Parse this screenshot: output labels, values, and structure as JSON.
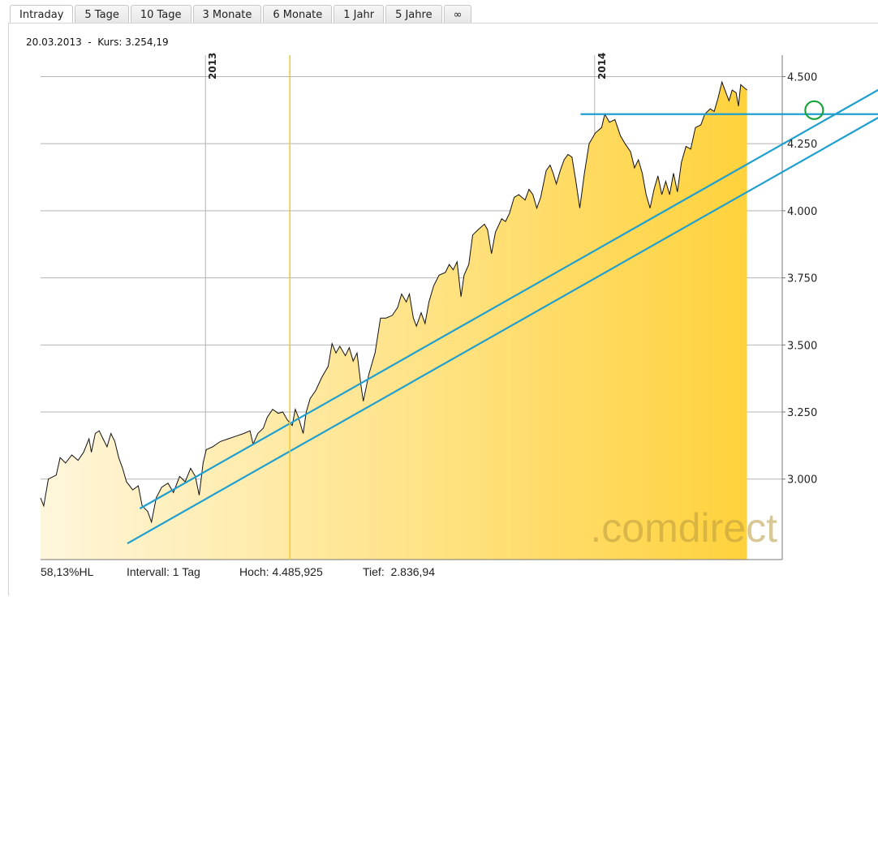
{
  "tabs": [
    {
      "label": "Intraday",
      "active": true
    },
    {
      "label": "5 Tage",
      "active": false
    },
    {
      "label": "10 Tage",
      "active": false
    },
    {
      "label": "3 Monate",
      "active": false
    },
    {
      "label": "6 Monate",
      "active": false
    },
    {
      "label": "1 Jahr",
      "active": false
    },
    {
      "label": "5 Jahre",
      "active": false
    },
    {
      "label": "∞",
      "active": false
    }
  ],
  "quote_line": "20.03.2013  -  Kurs: 3.254,19",
  "watermark": ".comdirect",
  "footer": {
    "hl": "58,13%HL",
    "interval": "Intervall: 1 Tag",
    "high": "Hoch: 4.485,925",
    "low": "Tief:  2.836,94"
  },
  "colors": {
    "area_light": "#fff6dc",
    "area_dark": "#ffd23c",
    "price_line": "#111111",
    "grid": "#b4b4b4",
    "trendline": "#1e9fd0",
    "marker_circle": "#1aa33a",
    "cursor_line": "#f5c518"
  },
  "chart_data": {
    "type": "area",
    "title": "",
    "xlabel": "",
    "ylabel": "",
    "ylim": [
      2700,
      4580
    ],
    "y_ticks": [
      "3.000",
      "3.250",
      "3.500",
      "3.750",
      "4.000",
      "4.250",
      "4.500"
    ],
    "y_tick_values": [
      3000,
      3250,
      3500,
      3750,
      4000,
      4250,
      4500
    ],
    "x_ticks": [
      "2013",
      "2014"
    ],
    "x_tick_positions": [
      0.211,
      0.709
    ],
    "x_range": [
      0,
      1
    ],
    "grid": true,
    "series": [
      {
        "values": [
          [
            0.0,
            2930
          ],
          [
            0.004,
            2900
          ],
          [
            0.01,
            3000
          ],
          [
            0.02,
            3015
          ],
          [
            0.025,
            3080
          ],
          [
            0.032,
            3060
          ],
          [
            0.04,
            3090
          ],
          [
            0.048,
            3070
          ],
          [
            0.055,
            3100
          ],
          [
            0.062,
            3150
          ],
          [
            0.065,
            3100
          ],
          [
            0.07,
            3170
          ],
          [
            0.075,
            3180
          ],
          [
            0.08,
            3150
          ],
          [
            0.085,
            3120
          ],
          [
            0.09,
            3170
          ],
          [
            0.095,
            3140
          ],
          [
            0.1,
            3080
          ],
          [
            0.105,
            3040
          ],
          [
            0.11,
            2990
          ],
          [
            0.118,
            2960
          ],
          [
            0.125,
            2975
          ],
          [
            0.13,
            2900
          ],
          [
            0.137,
            2880
          ],
          [
            0.142,
            2840
          ],
          [
            0.148,
            2930
          ],
          [
            0.155,
            2970
          ],
          [
            0.163,
            2985
          ],
          [
            0.17,
            2950
          ],
          [
            0.178,
            3010
          ],
          [
            0.185,
            2990
          ],
          [
            0.192,
            3040
          ],
          [
            0.198,
            3010
          ],
          [
            0.203,
            2940
          ],
          [
            0.208,
            3060
          ],
          [
            0.212,
            3110
          ],
          [
            0.22,
            3120
          ],
          [
            0.23,
            3140
          ],
          [
            0.24,
            3150
          ],
          [
            0.25,
            3160
          ],
          [
            0.26,
            3170
          ],
          [
            0.268,
            3180
          ],
          [
            0.272,
            3130
          ],
          [
            0.278,
            3170
          ],
          [
            0.285,
            3190
          ],
          [
            0.29,
            3230
          ],
          [
            0.297,
            3260
          ],
          [
            0.304,
            3245
          ],
          [
            0.31,
            3250
          ],
          [
            0.316,
            3220
          ],
          [
            0.322,
            3200
          ],
          [
            0.326,
            3260
          ],
          [
            0.33,
            3230
          ],
          [
            0.336,
            3170
          ],
          [
            0.34,
            3250
          ],
          [
            0.345,
            3300
          ],
          [
            0.352,
            3330
          ],
          [
            0.36,
            3380
          ],
          [
            0.368,
            3420
          ],
          [
            0.373,
            3505
          ],
          [
            0.378,
            3470
          ],
          [
            0.383,
            3495
          ],
          [
            0.39,
            3460
          ],
          [
            0.395,
            3490
          ],
          [
            0.4,
            3440
          ],
          [
            0.405,
            3470
          ],
          [
            0.41,
            3350
          ],
          [
            0.413,
            3290
          ],
          [
            0.42,
            3390
          ],
          [
            0.428,
            3470
          ],
          [
            0.435,
            3600
          ],
          [
            0.442,
            3600
          ],
          [
            0.45,
            3610
          ],
          [
            0.457,
            3640
          ],
          [
            0.462,
            3690
          ],
          [
            0.468,
            3660
          ],
          [
            0.472,
            3690
          ],
          [
            0.477,
            3600
          ],
          [
            0.481,
            3570
          ],
          [
            0.487,
            3620
          ],
          [
            0.492,
            3580
          ],
          [
            0.497,
            3660
          ],
          [
            0.503,
            3720
          ],
          [
            0.51,
            3760
          ],
          [
            0.518,
            3770
          ],
          [
            0.523,
            3800
          ],
          [
            0.528,
            3780
          ],
          [
            0.533,
            3810
          ],
          [
            0.538,
            3680
          ],
          [
            0.542,
            3760
          ],
          [
            0.548,
            3800
          ],
          [
            0.553,
            3910
          ],
          [
            0.56,
            3930
          ],
          [
            0.568,
            3950
          ],
          [
            0.572,
            3930
          ],
          [
            0.577,
            3840
          ],
          [
            0.582,
            3920
          ],
          [
            0.59,
            3970
          ],
          [
            0.595,
            3960
          ],
          [
            0.6,
            3990
          ],
          [
            0.606,
            4050
          ],
          [
            0.612,
            4060
          ],
          [
            0.62,
            4040
          ],
          [
            0.625,
            4080
          ],
          [
            0.63,
            4060
          ],
          [
            0.635,
            4010
          ],
          [
            0.64,
            4050
          ],
          [
            0.647,
            4150
          ],
          [
            0.652,
            4170
          ],
          [
            0.656,
            4140
          ],
          [
            0.66,
            4100
          ],
          [
            0.665,
            4150
          ],
          [
            0.67,
            4190
          ],
          [
            0.675,
            4210
          ],
          [
            0.68,
            4200
          ],
          [
            0.685,
            4110
          ],
          [
            0.69,
            4010
          ],
          [
            0.696,
            4140
          ],
          [
            0.702,
            4250
          ],
          [
            0.71,
            4290
          ],
          [
            0.718,
            4310
          ],
          [
            0.722,
            4360
          ],
          [
            0.728,
            4330
          ],
          [
            0.735,
            4340
          ],
          [
            0.742,
            4280
          ],
          [
            0.748,
            4250
          ],
          [
            0.755,
            4220
          ],
          [
            0.76,
            4160
          ],
          [
            0.765,
            4190
          ],
          [
            0.77,
            4140
          ],
          [
            0.775,
            4060
          ],
          [
            0.78,
            4010
          ],
          [
            0.785,
            4080
          ],
          [
            0.79,
            4130
          ],
          [
            0.795,
            4060
          ],
          [
            0.8,
            4110
          ],
          [
            0.805,
            4060
          ],
          [
            0.81,
            4140
          ],
          [
            0.815,
            4070
          ],
          [
            0.82,
            4180
          ],
          [
            0.826,
            4240
          ],
          [
            0.832,
            4230
          ],
          [
            0.838,
            4310
          ],
          [
            0.845,
            4320
          ],
          [
            0.85,
            4360
          ],
          [
            0.857,
            4380
          ],
          [
            0.862,
            4370
          ],
          [
            0.867,
            4420
          ],
          [
            0.872,
            4480
          ],
          [
            0.877,
            4440
          ],
          [
            0.881,
            4410
          ],
          [
            0.885,
            4450
          ],
          [
            0.89,
            4440
          ],
          [
            0.893,
            4390
          ],
          [
            0.896,
            4470
          ],
          [
            0.9,
            4460
          ],
          [
            0.904,
            4450
          ]
        ]
      }
    ],
    "annotations": [
      {
        "type": "trendline",
        "from": [
          0.127,
          2890
        ],
        "to": [
          1.114,
          4520
        ]
      },
      {
        "type": "trendline",
        "from": [
          0.111,
          2760
        ],
        "to": [
          1.11,
          4410
        ]
      },
      {
        "type": "hline",
        "y": 4360,
        "x_from": 0.691,
        "x_to": 1.15
      },
      {
        "type": "circle",
        "at": [
          0.99,
          4375
        ]
      },
      {
        "type": "vline",
        "x": 0.319
      }
    ]
  }
}
